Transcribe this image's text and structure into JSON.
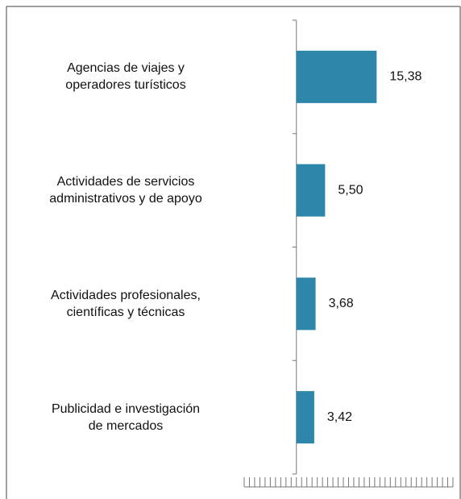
{
  "chart_data": {
    "type": "bar",
    "orientation": "horizontal",
    "categories": [
      "Agencias de viajes y\noperadores turísticos",
      "Actividades de servicios\nadministrativos y de apoyo",
      "Actividades profesionales,\ncientíficas y técnicas",
      "Publicidad e investigación\nde mercados"
    ],
    "values": [
      15.38,
      5.5,
      3.68,
      3.42
    ],
    "value_labels": [
      "15,38",
      "5,50",
      "3,68",
      "3,42"
    ],
    "color": "#2e86ab",
    "xlim": [
      -10,
      30
    ],
    "xticks": [
      -10,
      -9,
      -8,
      -7,
      -6,
      -5,
      -4,
      -3,
      -2,
      -1,
      0,
      1,
      2,
      3,
      4,
      5,
      6,
      7,
      8,
      9,
      10,
      11,
      12,
      13,
      14,
      15,
      16,
      17,
      18,
      19,
      20,
      21,
      22,
      23,
      24,
      25,
      26,
      27,
      28,
      29,
      30
    ]
  }
}
